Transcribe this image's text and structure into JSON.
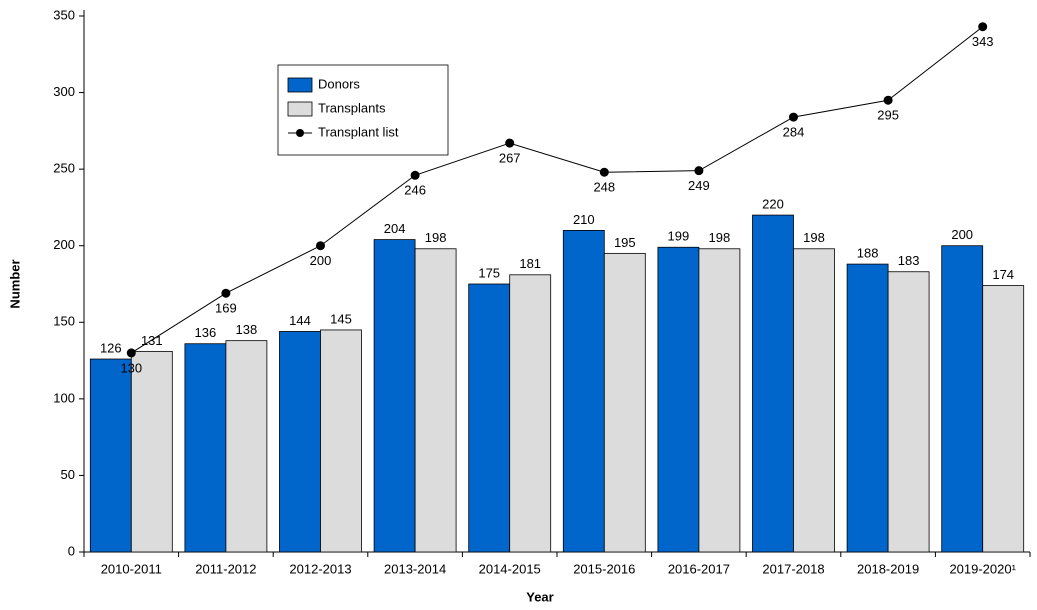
{
  "chart_data": {
    "type": "bar",
    "xlabel": "Year",
    "ylabel": "Number",
    "categories": [
      "2010-2011",
      "2011-2012",
      "2012-2013",
      "2013-2014",
      "2014-2015",
      "2015-2016",
      "2016-2017",
      "2017-2018",
      "2018-2019",
      "2019-2020¹"
    ],
    "series": [
      {
        "name": "Donors",
        "color": "#0066cc",
        "type": "bar",
        "values": [
          126,
          136,
          144,
          204,
          175,
          210,
          199,
          220,
          188,
          200
        ]
      },
      {
        "name": "Transplants",
        "color": "#dcdcdc",
        "type": "bar",
        "values": [
          131,
          138,
          145,
          198,
          181,
          195,
          198,
          198,
          183,
          174
        ]
      },
      {
        "name": "Transplant list",
        "color": "#000000",
        "type": "line",
        "values": [
          130,
          169,
          200,
          246,
          267,
          248,
          249,
          284,
          295,
          343
        ]
      }
    ],
    "ylim": [
      0,
      350
    ],
    "yticks": [
      0,
      50,
      100,
      150,
      200,
      250,
      300,
      350
    ],
    "legend": "upper left"
  }
}
